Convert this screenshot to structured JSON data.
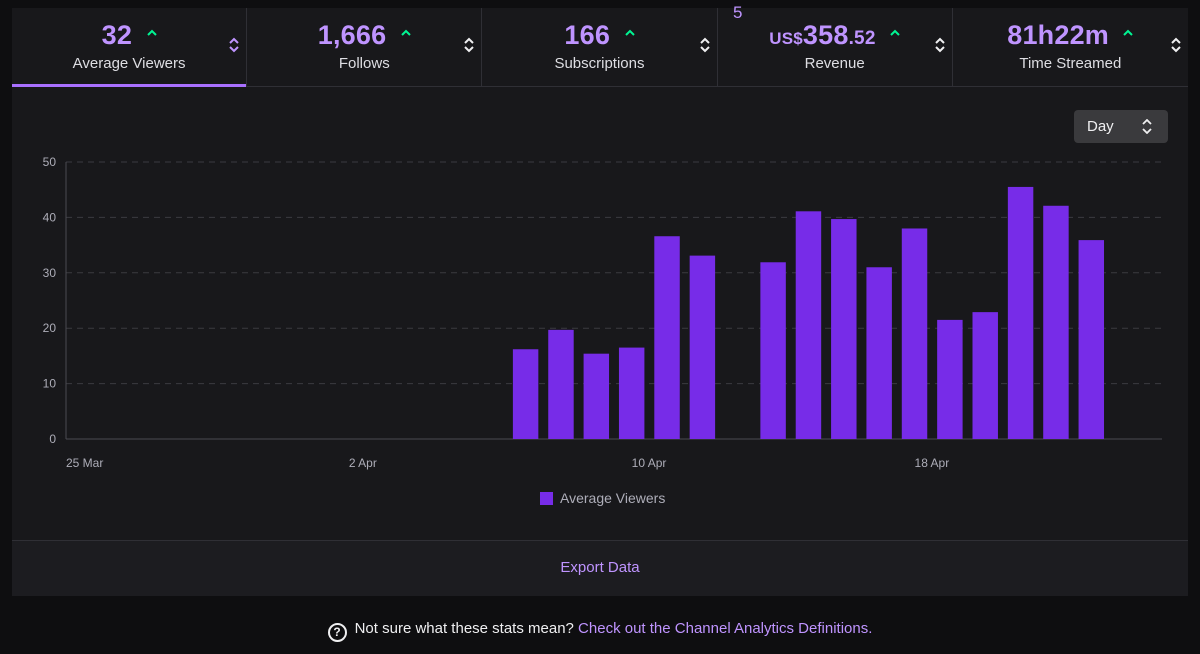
{
  "tabs": [
    {
      "value": "32",
      "label": "Average Viewers",
      "active": true
    },
    {
      "value": "1,666",
      "label": "Follows"
    },
    {
      "value": "166",
      "label": "Subscriptions"
    },
    {
      "value_currency": "US$",
      "value_main": "358",
      "value_cents": ".52",
      "label": "Revenue",
      "badge": "5"
    },
    {
      "value": "81h22m",
      "label": "Time Streamed"
    }
  ],
  "period_select": {
    "value": "Day"
  },
  "chart_data": {
    "type": "bar",
    "ylim": [
      0,
      50
    ],
    "yticks": [
      0,
      10,
      20,
      30,
      40,
      50
    ],
    "xticks": [
      {
        "label": "25 Mar",
        "x": "2025-03-25"
      },
      {
        "label": "2 Apr",
        "x": "2025-04-02"
      },
      {
        "label": "10 Apr",
        "x": "2025-04-10"
      },
      {
        "label": "18 Apr",
        "x": "2025-04-18"
      }
    ],
    "xlim": [
      "2025-03-25",
      "2025-04-25"
    ],
    "grid": true,
    "legend_position": "bottom",
    "series": [
      {
        "name": "Average Viewers",
        "color": "#772ce8",
        "points": [
          {
            "x": "2025-04-07",
            "y": 16.2
          },
          {
            "x": "2025-04-08",
            "y": 19.7
          },
          {
            "x": "2025-04-09",
            "y": 15.4
          },
          {
            "x": "2025-04-10",
            "y": 16.5
          },
          {
            "x": "2025-04-11",
            "y": 36.6
          },
          {
            "x": "2025-04-12",
            "y": 33.1
          },
          {
            "x": "2025-04-14",
            "y": 31.9
          },
          {
            "x": "2025-04-15",
            "y": 41.1
          },
          {
            "x": "2025-04-16",
            "y": 39.7
          },
          {
            "x": "2025-04-17",
            "y": 31.0
          },
          {
            "x": "2025-04-18",
            "y": 38.0
          },
          {
            "x": "2025-04-19",
            "y": 21.5
          },
          {
            "x": "2025-04-20",
            "y": 22.9
          },
          {
            "x": "2025-04-21",
            "y": 45.5
          },
          {
            "x": "2025-04-22",
            "y": 42.1
          },
          {
            "x": "2025-04-23",
            "y": 35.9
          }
        ]
      }
    ]
  },
  "footer": {
    "export_label": "Export Data"
  },
  "help": {
    "prefix": "Not sure what these stats mean?",
    "link": "Check out the Channel Analytics Definitions."
  },
  "icons": {
    "trend": "arrow-up-icon",
    "sort": "sort-icon",
    "help": "question-circle-icon"
  }
}
